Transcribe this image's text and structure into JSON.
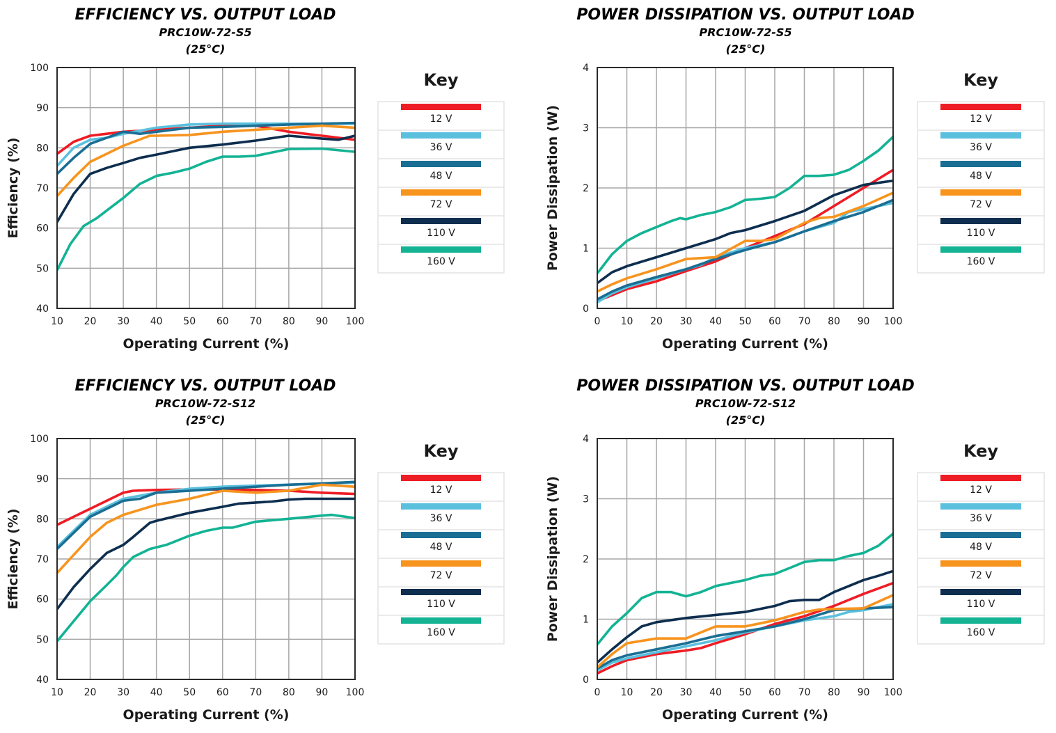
{
  "colors": {
    "12 V": "#ee1c25",
    "36 V": "#5bc0de",
    "48 V": "#1a6e94",
    "72 V": "#f7941e",
    "110 V": "#0e2e4f",
    "160 V": "#13b394"
  },
  "chart_data": [
    {
      "type": "line",
      "title": "EFFICIENCY VS. OUTPUT LOAD",
      "subtitle": "PRC10W-72-S5",
      "subtitle2": "(25°C)",
      "xlabel": "Operating Current (%)",
      "ylabel": "Efficiency (%)",
      "xlim": [
        10,
        100
      ],
      "ylim": [
        40,
        100
      ],
      "xticks": [
        10,
        20,
        30,
        40,
        50,
        60,
        70,
        80,
        90,
        100
      ],
      "yticks": [
        40,
        50,
        60,
        70,
        80,
        90,
        100
      ],
      "grid": true,
      "legend_title": "Key",
      "legend_position": "right",
      "series": [
        {
          "name": "12 V",
          "x": [
            10,
            15,
            20,
            25,
            30,
            40,
            50,
            60,
            70,
            80,
            90,
            100
          ],
          "y": [
            78.5,
            81.5,
            83,
            83.5,
            84,
            84.5,
            85,
            85.5,
            85.5,
            84,
            83,
            82
          ]
        },
        {
          "name": "36 V",
          "x": [
            10,
            15,
            20,
            25,
            30,
            40,
            50,
            60,
            70,
            80,
            90,
            100
          ],
          "y": [
            75.5,
            80,
            82,
            82.5,
            83.5,
            85,
            85.8,
            86,
            86,
            86,
            86,
            86
          ]
        },
        {
          "name": "48 V",
          "x": [
            10,
            15,
            20,
            25,
            30,
            35,
            40,
            50,
            60,
            70,
            80,
            90,
            100
          ],
          "y": [
            73.5,
            77.5,
            81,
            82.5,
            84,
            83.5,
            84,
            85,
            85.2,
            85.5,
            85.8,
            86,
            86.2
          ]
        },
        {
          "name": "72 V",
          "x": [
            10,
            15,
            20,
            25,
            30,
            38,
            40,
            50,
            60,
            70,
            80,
            90,
            100
          ],
          "y": [
            68,
            72.5,
            76.5,
            78.5,
            80.5,
            83,
            83,
            83.2,
            84,
            84.5,
            85,
            85.5,
            85
          ]
        },
        {
          "name": "110 V",
          "x": [
            10,
            15,
            20,
            25,
            30,
            35,
            40,
            50,
            60,
            70,
            80,
            90,
            95,
            100
          ],
          "y": [
            61.5,
            68.5,
            73.5,
            75,
            76.2,
            77.5,
            78.3,
            80,
            80.8,
            81.8,
            83,
            82.3,
            82,
            83
          ]
        },
        {
          "name": "160 V",
          "x": [
            10,
            14,
            18,
            22,
            26,
            30,
            35,
            40,
            45,
            50,
            55,
            60,
            65,
            70,
            80,
            90,
            100
          ],
          "y": [
            49.5,
            56,
            60.5,
            62.5,
            65,
            67.5,
            71,
            73,
            73.8,
            74.8,
            76.5,
            77.8,
            77.8,
            78,
            79.7,
            79.8,
            79
          ]
        }
      ]
    },
    {
      "type": "line",
      "title": "POWER DISSIPATION VS. OUTPUT LOAD",
      "subtitle": "PRC10W-72-S5",
      "subtitle2": "(25°C)",
      "xlabel": "Operating Current (%)",
      "ylabel": "Power Dissipation (W)",
      "xlim": [
        0,
        100
      ],
      "ylim": [
        0,
        4
      ],
      "xticks": [
        0,
        10,
        20,
        30,
        40,
        50,
        60,
        70,
        80,
        90,
        100
      ],
      "yticks": [
        0,
        1,
        2,
        3,
        4
      ],
      "grid": true,
      "legend_title": "Key",
      "legend_position": "right",
      "series": [
        {
          "name": "12 V",
          "x": [
            0,
            5,
            10,
            20,
            30,
            40,
            50,
            60,
            70,
            80,
            90,
            100
          ],
          "y": [
            0.12,
            0.22,
            0.32,
            0.45,
            0.62,
            0.78,
            1.0,
            1.2,
            1.4,
            1.7,
            2.0,
            2.3
          ]
        },
        {
          "name": "36 V",
          "x": [
            0,
            5,
            10,
            20,
            30,
            35,
            40,
            50,
            60,
            70,
            80,
            85,
            90,
            100
          ],
          "y": [
            0.1,
            0.25,
            0.35,
            0.5,
            0.65,
            0.72,
            0.85,
            1.0,
            1.1,
            1.28,
            1.42,
            1.6,
            1.65,
            1.75
          ]
        },
        {
          "name": "48 V",
          "x": [
            0,
            5,
            10,
            20,
            30,
            40,
            50,
            60,
            70,
            80,
            90,
            100
          ],
          "y": [
            0.15,
            0.28,
            0.38,
            0.52,
            0.65,
            0.82,
            0.97,
            1.1,
            1.28,
            1.45,
            1.6,
            1.8
          ]
        },
        {
          "name": "72 V",
          "x": [
            0,
            5,
            10,
            20,
            30,
            40,
            50,
            55,
            60,
            70,
            75,
            80,
            90,
            100
          ],
          "y": [
            0.28,
            0.4,
            0.5,
            0.65,
            0.82,
            0.85,
            1.12,
            1.12,
            1.15,
            1.42,
            1.5,
            1.52,
            1.7,
            1.92
          ]
        },
        {
          "name": "110 V",
          "x": [
            0,
            5,
            10,
            20,
            30,
            40,
            45,
            50,
            60,
            70,
            80,
            90,
            100
          ],
          "y": [
            0.42,
            0.6,
            0.7,
            0.85,
            1.0,
            1.15,
            1.25,
            1.3,
            1.45,
            1.62,
            1.88,
            2.05,
            2.12
          ]
        },
        {
          "name": "160 V",
          "x": [
            0,
            5,
            10,
            15,
            20,
            25,
            28,
            30,
            35,
            40,
            45,
            50,
            55,
            60,
            65,
            70,
            75,
            80,
            85,
            90,
            95,
            100
          ],
          "y": [
            0.58,
            0.9,
            1.12,
            1.25,
            1.35,
            1.45,
            1.5,
            1.48,
            1.55,
            1.6,
            1.68,
            1.8,
            1.82,
            1.85,
            2.0,
            2.2,
            2.2,
            2.22,
            2.3,
            2.45,
            2.62,
            2.85
          ]
        }
      ]
    },
    {
      "type": "line",
      "title": "EFFICIENCY VS. OUTPUT LOAD",
      "subtitle": "PRC10W-72-S12",
      "subtitle2": "(25°C)",
      "xlabel": "Operating Current (%)",
      "ylabel": "Efficiency (%)",
      "xlim": [
        10,
        100
      ],
      "ylim": [
        40,
        100
      ],
      "xticks": [
        10,
        20,
        30,
        40,
        50,
        60,
        70,
        80,
        90,
        100
      ],
      "yticks": [
        40,
        50,
        60,
        70,
        80,
        90,
        100
      ],
      "grid": true,
      "legend_title": "Key",
      "legend_position": "right",
      "series": [
        {
          "name": "12 V",
          "x": [
            10,
            15,
            20,
            25,
            30,
            33,
            40,
            50,
            60,
            70,
            80,
            90,
            100
          ],
          "y": [
            78.5,
            80.5,
            82.5,
            84.5,
            86.5,
            87,
            87.2,
            87.3,
            87.3,
            87.2,
            87,
            86.5,
            86.2
          ]
        },
        {
          "name": "36 V",
          "x": [
            10,
            15,
            20,
            25,
            30,
            40,
            50,
            60,
            70,
            80,
            90,
            100
          ],
          "y": [
            73,
            77,
            81,
            83,
            85,
            86.5,
            87.5,
            88,
            88.3,
            88.5,
            88.8,
            89
          ]
        },
        {
          "name": "48 V",
          "x": [
            10,
            15,
            20,
            25,
            30,
            35,
            40,
            50,
            60,
            70,
            80,
            90,
            100
          ],
          "y": [
            72.5,
            76.5,
            80.5,
            82.5,
            84.5,
            85,
            86.5,
            87,
            87.5,
            88,
            88.5,
            88.8,
            89.2
          ]
        },
        {
          "name": "72 V",
          "x": [
            10,
            15,
            20,
            25,
            30,
            40,
            50,
            55,
            60,
            70,
            80,
            90,
            100
          ],
          "y": [
            66.5,
            71,
            75.5,
            79,
            81,
            83.5,
            85,
            86,
            87,
            86.5,
            87,
            88.5,
            88
          ]
        },
        {
          "name": "110 V",
          "x": [
            10,
            15,
            20,
            25,
            30,
            33,
            38,
            40,
            50,
            60,
            65,
            75,
            80,
            85,
            90,
            100
          ],
          "y": [
            57.5,
            63,
            67.5,
            71.5,
            73.5,
            75.5,
            79,
            79.5,
            81.5,
            83,
            83.8,
            84.3,
            84.8,
            85,
            85,
            85
          ]
        },
        {
          "name": "160 V",
          "x": [
            10,
            15,
            20,
            25,
            28,
            30,
            33,
            38,
            43,
            50,
            55,
            60,
            63,
            70,
            80,
            90,
            93,
            100
          ],
          "y": [
            49.5,
            54.5,
            59.5,
            63.5,
            66,
            68,
            70.5,
            72.5,
            73.5,
            75.8,
            77,
            77.8,
            77.8,
            79.3,
            80,
            80.8,
            81,
            80.2
          ]
        }
      ]
    },
    {
      "type": "line",
      "title": "POWER DISSIPATION VS. OUTPUT LOAD",
      "subtitle": "PRC10W-72-S12",
      "subtitle2": "(25°C)",
      "xlabel": "Operating Current (%)",
      "ylabel": "Power Dissipation (W)",
      "xlim": [
        0,
        100
      ],
      "ylim": [
        0,
        4
      ],
      "xticks": [
        0,
        10,
        20,
        30,
        40,
        50,
        60,
        70,
        80,
        90,
        100
      ],
      "yticks": [
        0,
        1,
        2,
        3,
        4
      ],
      "grid": true,
      "legend_title": "Key",
      "legend_position": "right",
      "series": [
        {
          "name": "12 V",
          "x": [
            0,
            5,
            10,
            20,
            30,
            35,
            40,
            50,
            60,
            70,
            80,
            90,
            100
          ],
          "y": [
            0.1,
            0.22,
            0.32,
            0.42,
            0.48,
            0.52,
            0.6,
            0.75,
            0.92,
            1.05,
            1.22,
            1.42,
            1.6
          ]
        },
        {
          "name": "36 V",
          "x": [
            0,
            5,
            10,
            20,
            30,
            40,
            50,
            60,
            70,
            80,
            85,
            90,
            100
          ],
          "y": [
            0.15,
            0.28,
            0.35,
            0.45,
            0.55,
            0.65,
            0.78,
            0.88,
            0.98,
            1.05,
            1.12,
            1.15,
            1.25
          ]
        },
        {
          "name": "48 V",
          "x": [
            0,
            5,
            10,
            20,
            30,
            40,
            50,
            60,
            70,
            80,
            90,
            100
          ],
          "y": [
            0.18,
            0.32,
            0.4,
            0.5,
            0.6,
            0.72,
            0.8,
            0.88,
            1.0,
            1.15,
            1.18,
            1.2
          ]
        },
        {
          "name": "72 V",
          "x": [
            0,
            5,
            10,
            20,
            30,
            40,
            50,
            60,
            70,
            75,
            80,
            90,
            100
          ],
          "y": [
            0.2,
            0.42,
            0.6,
            0.68,
            0.68,
            0.88,
            0.88,
            0.98,
            1.12,
            1.16,
            1.17,
            1.18,
            1.4
          ]
        },
        {
          "name": "110 V",
          "x": [
            0,
            5,
            10,
            15,
            20,
            30,
            40,
            50,
            60,
            65,
            70,
            75,
            80,
            85,
            90,
            95,
            100
          ],
          "y": [
            0.28,
            0.5,
            0.7,
            0.88,
            0.95,
            1.02,
            1.07,
            1.12,
            1.22,
            1.3,
            1.32,
            1.32,
            1.45,
            1.55,
            1.65,
            1.72,
            1.8
          ]
        },
        {
          "name": "160 V",
          "x": [
            0,
            5,
            10,
            15,
            20,
            25,
            30,
            35,
            40,
            50,
            55,
            60,
            65,
            70,
            75,
            80,
            85,
            90,
            95,
            100
          ],
          "y": [
            0.58,
            0.88,
            1.1,
            1.35,
            1.45,
            1.45,
            1.38,
            1.45,
            1.55,
            1.65,
            1.72,
            1.75,
            1.85,
            1.95,
            1.98,
            1.98,
            2.05,
            2.1,
            2.22,
            2.42
          ]
        }
      ]
    }
  ]
}
